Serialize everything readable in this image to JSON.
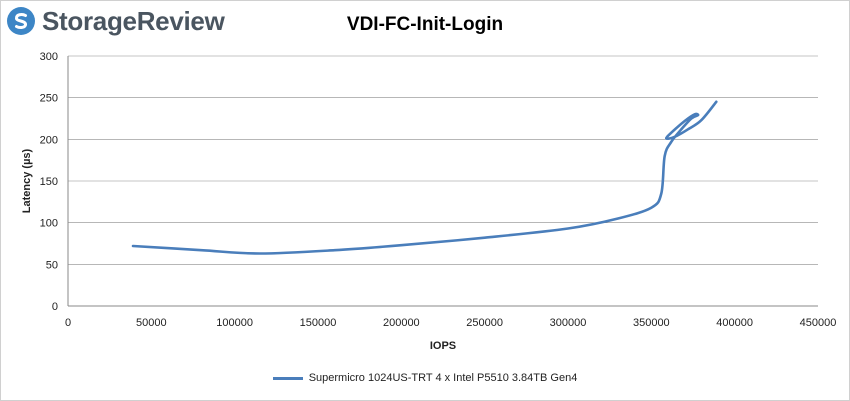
{
  "brand": {
    "name": "StorageReview",
    "logo_icon": "storagereview-logo-icon",
    "logo_color": "#3d86c6"
  },
  "chart_data": {
    "type": "line",
    "title": "VDI-FC-Init-Login",
    "xlabel": "IOPS",
    "ylabel": "Latency (µs)",
    "xlim": [
      0,
      450000
    ],
    "ylim": [
      0,
      300
    ],
    "xticks": [
      "0",
      "50000",
      "100000",
      "150000",
      "200000",
      "250000",
      "300000",
      "350000",
      "400000",
      "450000"
    ],
    "yticks": [
      "0",
      "50",
      "100",
      "150",
      "200",
      "250",
      "300"
    ],
    "grid": "horizontal",
    "legend_position": "bottom",
    "series": [
      {
        "name": "Supermicro 1024US-TRT 4 x Intel P5510 3.84TB Gen4",
        "color": "#4a7ebb",
        "x": [
          39000,
          80000,
          115000,
          160000,
          200000,
          250000,
          300000,
          330000,
          350000,
          356000,
          358000,
          362000,
          368000,
          374000,
          378000,
          376000,
          370000,
          362000,
          359000,
          364000,
          372000,
          380000,
          389000
        ],
        "y": [
          72,
          67,
          63,
          67,
          73,
          82,
          93,
          105,
          118,
          135,
          180,
          197,
          212,
          225,
          229,
          230,
          222,
          208,
          201,
          203,
          212,
          223,
          245
        ]
      }
    ]
  }
}
